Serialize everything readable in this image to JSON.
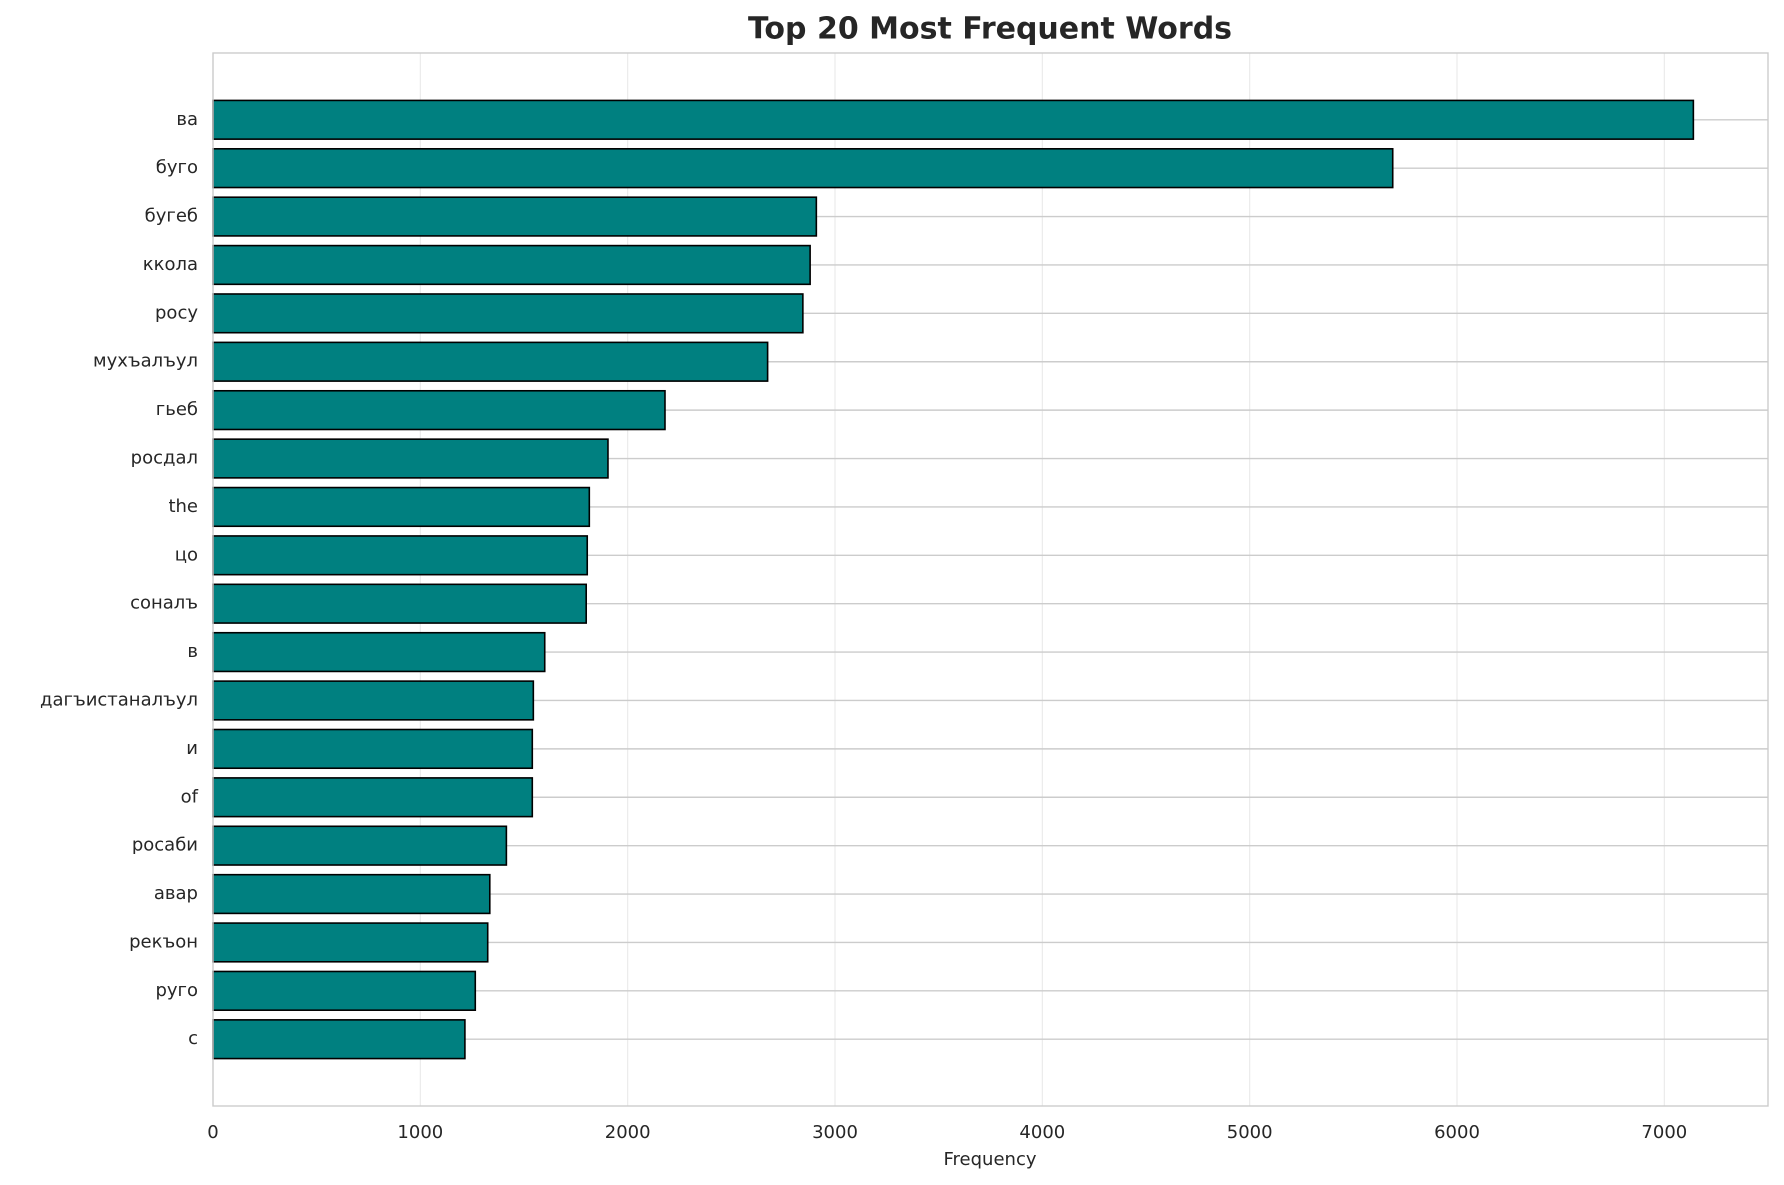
{
  "chart_data": {
    "type": "barh",
    "title": "Top 20 Most Frequent Words",
    "x_label": "Frequency",
    "categories": [
      "ва",
      "буго",
      "бугеб",
      "ккола",
      "росу",
      "мухъалъул",
      "гьеб",
      "росдал",
      "the",
      "цо",
      "соналъ",
      "в",
      "дагъистаналъул",
      "и",
      "of",
      "росаби",
      "авар",
      "рекъон",
      "руго",
      "с"
    ],
    "values": [
      7140,
      5690,
      2910,
      2880,
      2845,
      2675,
      2180,
      1905,
      1815,
      1805,
      1800,
      1600,
      1545,
      1540,
      1540,
      1415,
      1335,
      1325,
      1265,
      1215
    ],
    "color": "#008080",
    "edge_color": "#000000",
    "xlim": [
      0,
      7500
    ],
    "xticks": [
      0,
      1000,
      2000,
      3000,
      4000,
      5000,
      6000,
      7000
    ],
    "grid": true
  }
}
